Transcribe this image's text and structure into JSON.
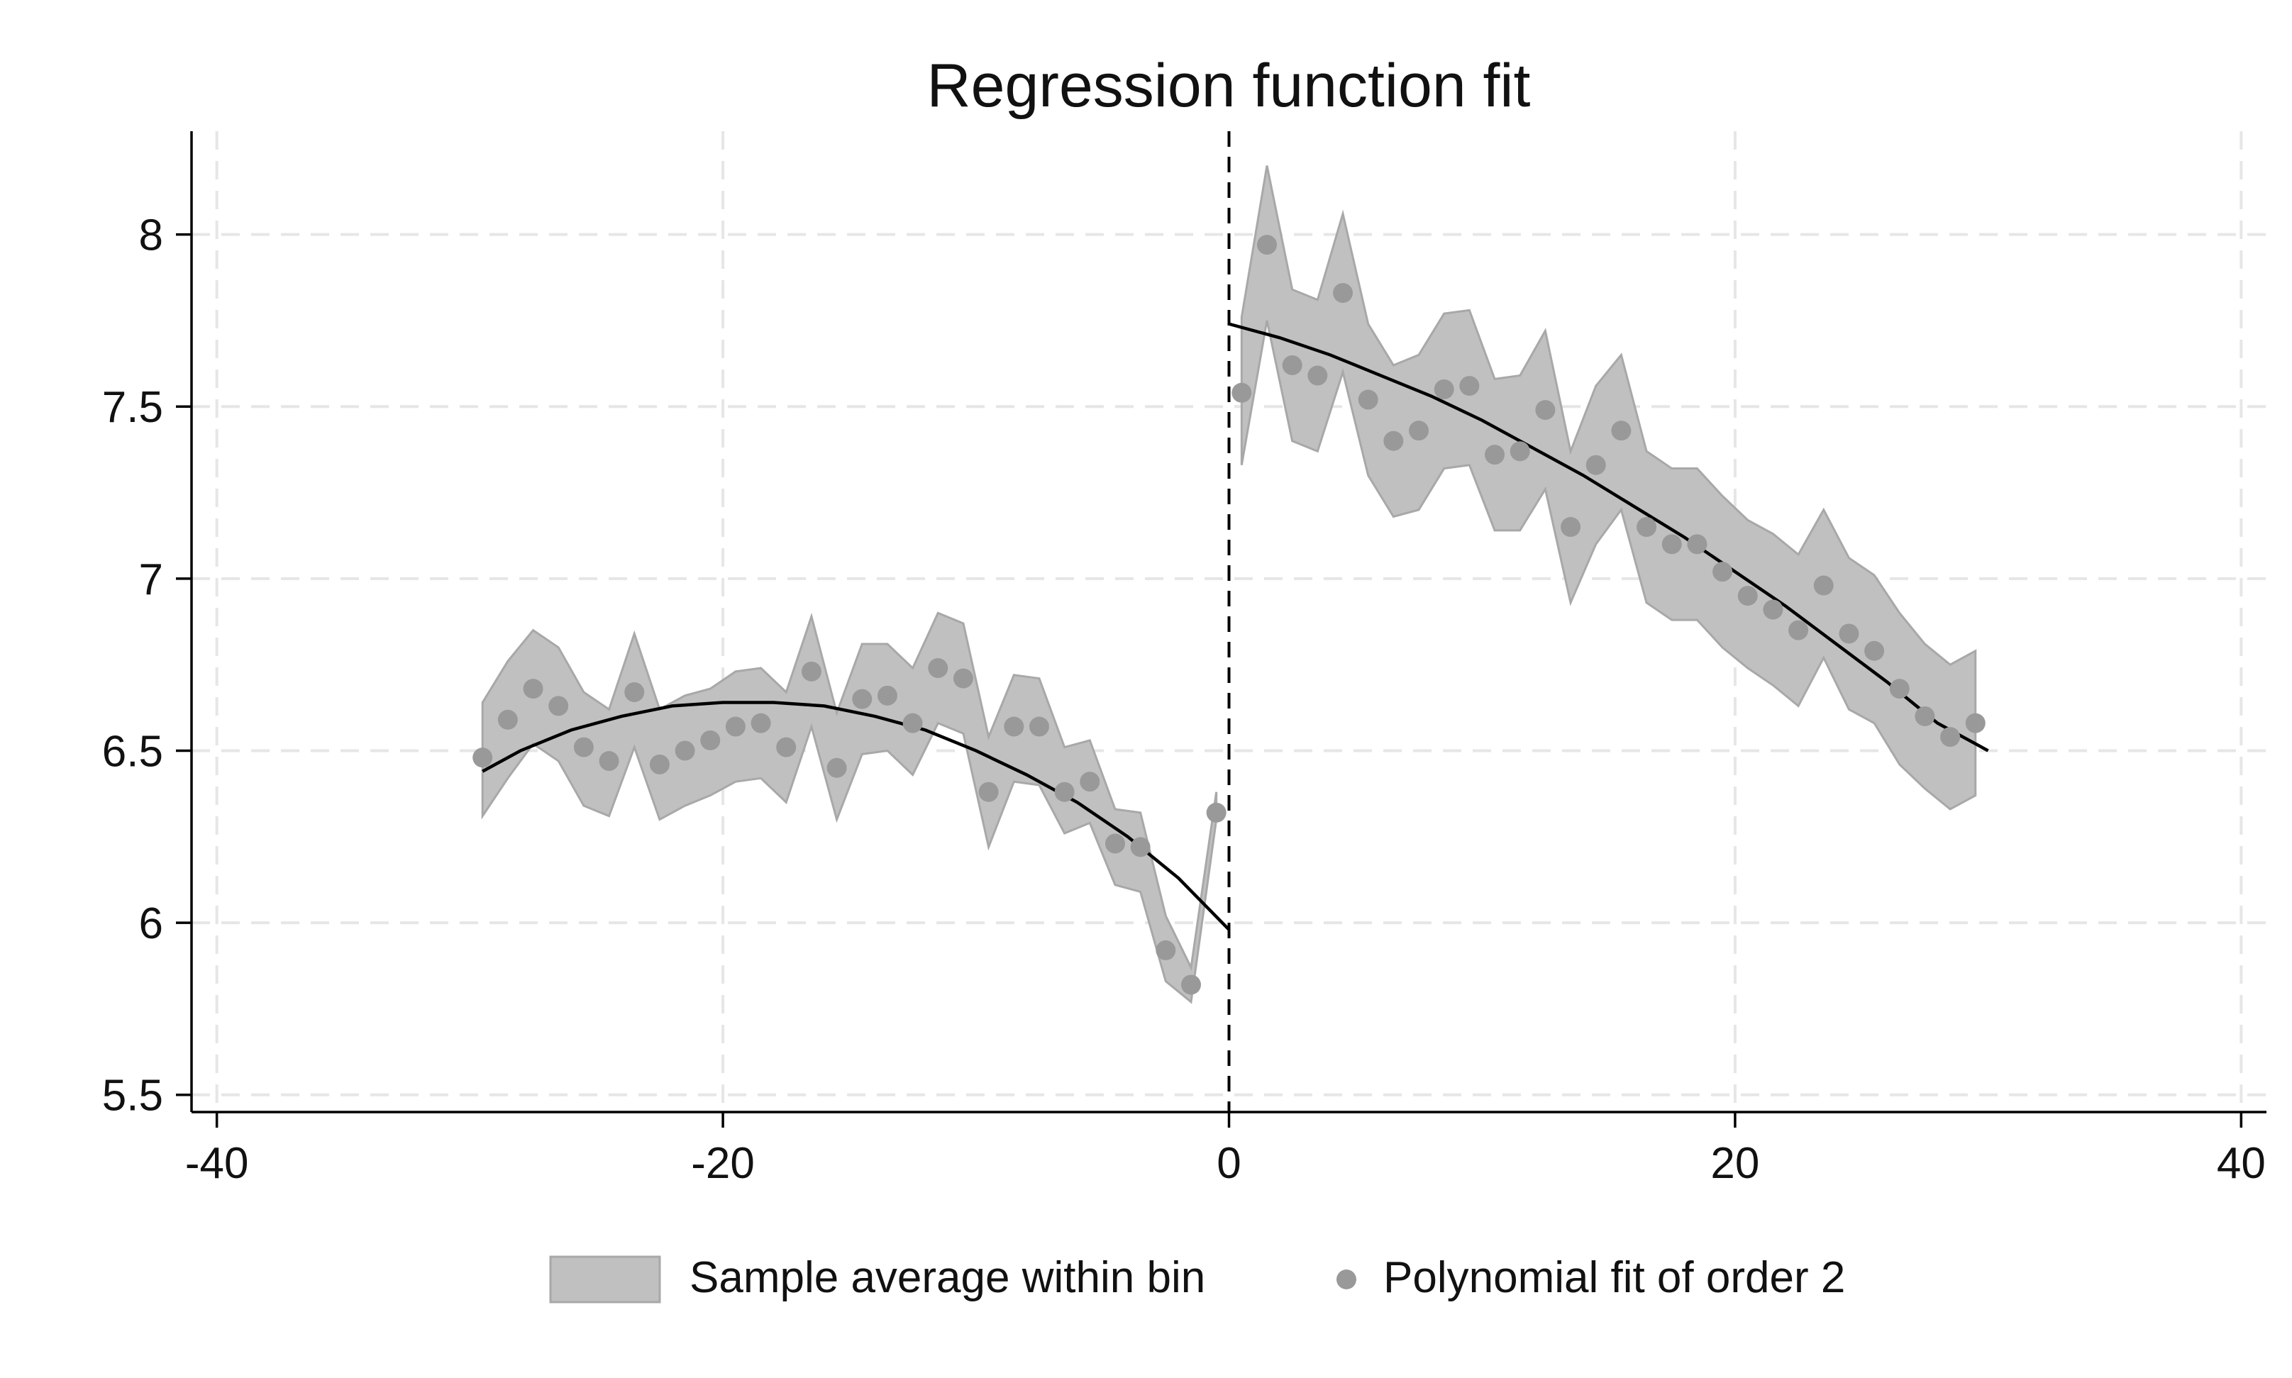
{
  "chart_data": {
    "type": "scatter",
    "title": "Regression function fit",
    "xlabel": "",
    "ylabel": "",
    "xlim": [
      -41,
      41
    ],
    "ylim": [
      5.45,
      8.3
    ],
    "x_ticks": [
      -40,
      -20,
      0,
      20,
      40
    ],
    "x_tick_labels": [
      "-40",
      "-20",
      "0",
      "20",
      "40"
    ],
    "y_ticks": [
      5.5,
      6,
      6.5,
      7,
      7.5,
      8
    ],
    "y_tick_labels": [
      "5.5",
      "6",
      "6.5",
      "7",
      "7.5",
      "8"
    ],
    "grid": true,
    "cutoff": 0,
    "legend": {
      "position": "bottom",
      "entries": [
        "Sample average within bin",
        "Polynomial fit of order 2"
      ]
    },
    "colors": {
      "band": "#c0c0c0",
      "band_edge": "#a8a8a8",
      "points": "#999999",
      "fit": "#000000",
      "grid": "#e6e6e6"
    },
    "series": [
      {
        "segment": "left",
        "x": [
          -29.5,
          -28.5,
          -27.5,
          -26.5,
          -25.5,
          -24.5,
          -23.5,
          -22.5,
          -21.5,
          -20.5,
          -19.5,
          -18.5,
          -17.5,
          -16.5,
          -15.5,
          -14.5,
          -13.5,
          -12.5,
          -11.5,
          -10.5,
          -9.5,
          -8.5,
          -7.5,
          -6.5,
          -5.5,
          -4.5,
          -3.5,
          -2.5,
          -1.5,
          -0.5
        ],
        "mean": [
          6.48,
          6.59,
          6.68,
          6.63,
          6.51,
          6.47,
          6.67,
          6.46,
          6.5,
          6.53,
          6.57,
          6.58,
          6.51,
          6.73,
          6.45,
          6.65,
          6.66,
          6.58,
          6.74,
          6.71,
          6.38,
          6.57,
          6.57,
          6.38,
          6.41,
          6.23,
          6.22,
          5.92,
          5.82,
          6.32
        ],
        "ci_low": [
          6.31,
          6.42,
          6.52,
          6.47,
          6.34,
          6.31,
          6.51,
          6.3,
          6.34,
          6.37,
          6.41,
          6.42,
          6.35,
          6.57,
          6.3,
          6.49,
          6.5,
          6.43,
          6.58,
          6.55,
          6.22,
          6.41,
          6.4,
          6.26,
          6.29,
          6.11,
          6.09,
          5.83,
          5.77,
          6.3
        ],
        "ci_high": [
          6.64,
          6.76,
          6.85,
          6.8,
          6.67,
          6.62,
          6.84,
          6.62,
          6.66,
          6.68,
          6.73,
          6.74,
          6.67,
          6.89,
          6.61,
          6.81,
          6.81,
          6.74,
          6.9,
          6.87,
          6.54,
          6.72,
          6.71,
          6.51,
          6.53,
          6.33,
          6.32,
          6.02,
          5.87,
          6.38
        ],
        "fit_x": [
          -29.5,
          -28,
          -26,
          -24,
          -22,
          -20,
          -18,
          -16,
          -14,
          -12,
          -10,
          -8,
          -6,
          -4,
          -2,
          0
        ],
        "fit_y": [
          6.44,
          6.5,
          6.56,
          6.6,
          6.63,
          6.64,
          6.64,
          6.63,
          6.6,
          6.56,
          6.5,
          6.43,
          6.35,
          6.25,
          6.13,
          5.98
        ]
      },
      {
        "segment": "right",
        "x": [
          0.5,
          1.5,
          2.5,
          3.5,
          4.5,
          5.5,
          6.5,
          7.5,
          8.5,
          9.5,
          10.5,
          11.5,
          12.5,
          13.5,
          14.5,
          15.5,
          16.5,
          17.5,
          18.5,
          19.5,
          20.5,
          21.5,
          22.5,
          23.5,
          24.5,
          25.5,
          26.5,
          27.5,
          28.5,
          29.5
        ],
        "mean": [
          7.54,
          7.97,
          7.62,
          7.59,
          7.83,
          7.52,
          7.4,
          7.43,
          7.55,
          7.56,
          7.36,
          7.37,
          7.49,
          7.15,
          7.33,
          7.43,
          7.15,
          7.1,
          7.1,
          7.02,
          6.95,
          6.91,
          6.85,
          6.98,
          6.84,
          6.79,
          6.68,
          6.6,
          6.54,
          6.58
        ],
        "ci_low": [
          7.33,
          7.75,
          7.4,
          7.37,
          7.6,
          7.3,
          7.18,
          7.2,
          7.32,
          7.33,
          7.14,
          7.14,
          7.26,
          6.93,
          7.1,
          7.2,
          6.93,
          6.88,
          6.88,
          6.8,
          6.74,
          6.69,
          6.63,
          6.77,
          6.62,
          6.58,
          6.46,
          6.39,
          6.33,
          6.37
        ],
        "ci_high": [
          7.76,
          8.2,
          7.84,
          7.81,
          8.06,
          7.74,
          7.62,
          7.65,
          7.77,
          7.78,
          7.58,
          7.59,
          7.72,
          7.37,
          7.56,
          7.65,
          7.37,
          7.32,
          7.32,
          7.24,
          7.17,
          7.13,
          7.07,
          7.2,
          7.06,
          7.01,
          6.9,
          6.81,
          6.75,
          6.79
        ],
        "fit_x": [
          0,
          2,
          4,
          6,
          8,
          10,
          12,
          14,
          16,
          18,
          20,
          22,
          24,
          26,
          28,
          30
        ],
        "fit_y": [
          7.74,
          7.7,
          7.65,
          7.59,
          7.53,
          7.46,
          7.38,
          7.3,
          7.21,
          7.12,
          7.02,
          6.92,
          6.81,
          6.7,
          6.58,
          6.5
        ]
      }
    ]
  }
}
